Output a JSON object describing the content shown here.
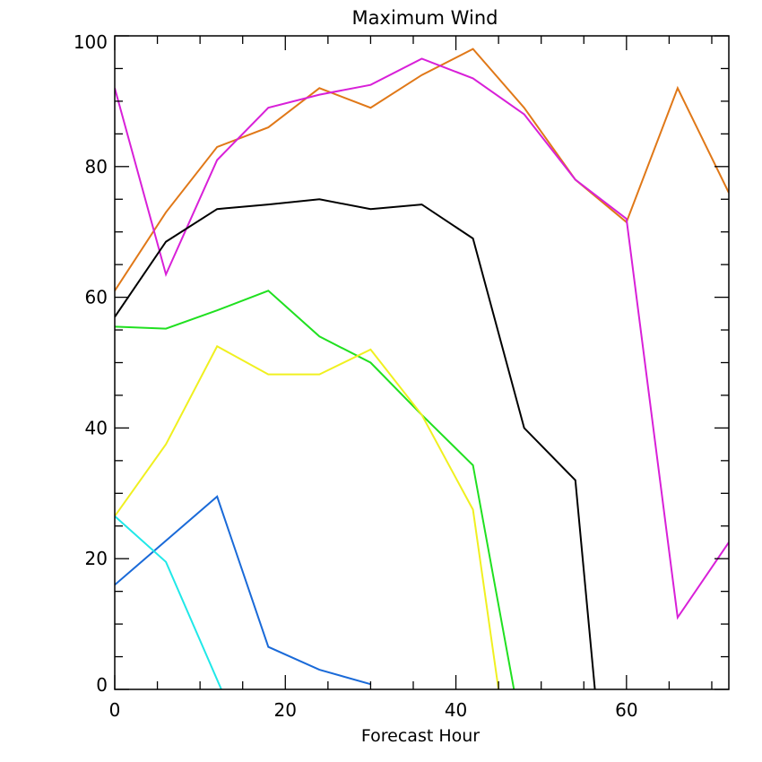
{
  "chart_data": {
    "type": "line",
    "title": "Maximum Wind",
    "xlabel": "Forecast Hour",
    "ylabel": "",
    "xlim": [
      0,
      72
    ],
    "ylim": [
      0,
      100
    ],
    "x_ticks": [
      0,
      20,
      40,
      60
    ],
    "y_ticks": [
      0,
      20,
      40,
      60,
      80,
      100
    ],
    "x_tick_labels": [
      "0",
      "20",
      "40",
      "60"
    ],
    "y_tick_labels": [
      "0",
      "20",
      "40",
      "60",
      "80",
      "100"
    ],
    "x_minor_step": 5,
    "y_minor_step": 5,
    "grid": false,
    "series": [
      {
        "color": "#e07818",
        "x": [
          0,
          6,
          12,
          18,
          24,
          30,
          36,
          42,
          48,
          54,
          60,
          66,
          72
        ],
        "values": [
          61,
          73,
          83,
          86,
          92,
          89,
          94,
          98,
          89,
          78,
          71.5,
          92,
          76
        ]
      },
      {
        "color": "#d820d8",
        "x": [
          0,
          6,
          12,
          18,
          24,
          30,
          36,
          42,
          48,
          54,
          60,
          66,
          72
        ],
        "values": [
          92,
          63.5,
          81,
          89,
          91,
          92.5,
          96.5,
          93.5,
          88,
          78,
          72,
          11,
          22.5
        ]
      },
      {
        "color": "#000000",
        "x": [
          0,
          6,
          12,
          18,
          24,
          30,
          36,
          42,
          48,
          54,
          56.3
        ],
        "values": [
          57,
          68.5,
          73.5,
          74.2,
          75,
          73.5,
          74.2,
          69,
          40,
          32,
          0
        ]
      },
      {
        "color": "#20e020",
        "x": [
          0,
          6,
          12,
          18,
          24,
          30,
          36,
          42,
          46.8
        ],
        "values": [
          55.5,
          55.2,
          58,
          61,
          54,
          50,
          42,
          34.3,
          0
        ]
      },
      {
        "color": "#f0f020",
        "x": [
          0,
          6,
          12,
          18,
          24,
          30,
          36,
          42,
          45
        ],
        "values": [
          26.5,
          37.5,
          52.5,
          48.2,
          48.2,
          52,
          42,
          27.5,
          0
        ]
      },
      {
        "color": "#1a6ad8",
        "x": [
          0,
          12,
          18,
          24,
          30
        ],
        "values": [
          16,
          29.5,
          6.5,
          3,
          0.8
        ]
      },
      {
        "color": "#20e8e8",
        "x": [
          0,
          6,
          12.5
        ],
        "values": [
          26.5,
          19.5,
          0
        ]
      }
    ]
  }
}
